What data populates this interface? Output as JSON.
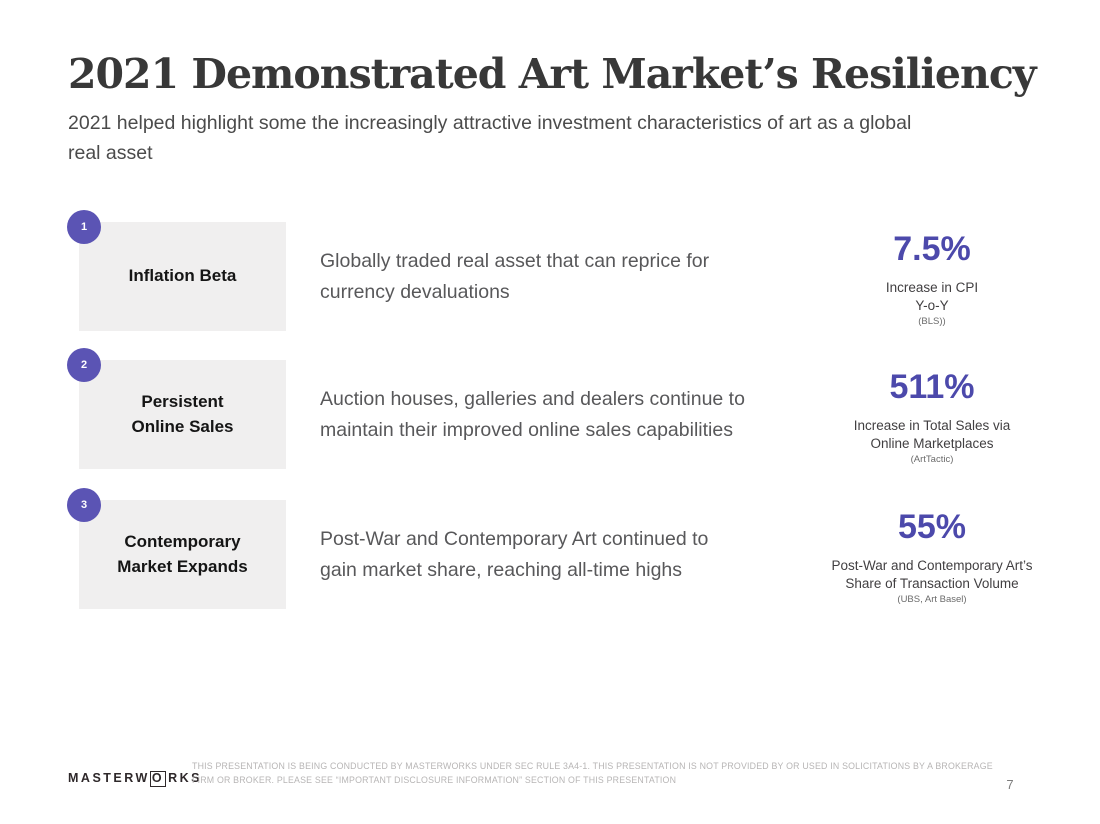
{
  "slide": {
    "title": "2021 Demonstrated Art Market’s Resiliency",
    "subtitle": "2021 helped highlight some the increasingly attractive investment characteristics of art as a global\nreal asset"
  },
  "rows": [
    {
      "number": "1",
      "label": "Inflation Beta",
      "description": "Globally traded real asset that can reprice for\ncurrency devaluations",
      "stat_value": "7.5%",
      "stat_label": "Increase in CPI\nY-o-Y",
      "stat_source": "(BLS))"
    },
    {
      "number": "2",
      "label": "Persistent\nOnline Sales",
      "description": "Auction houses, galleries and dealers continue to\nmaintain their improved online sales capabilities",
      "stat_value": "511%",
      "stat_label": "Increase in Total Sales via\nOnline Marketplaces",
      "stat_source": "(ArtTactic)"
    },
    {
      "number": "3",
      "label": "Contemporary\nMarket Expands",
      "description": "Post-War and Contemporary Art continued to\ngain market share, reaching all-time highs",
      "stat_value": "55%",
      "stat_label": "Post-War and Contemporary Art’s\nShare of Transaction Volume",
      "stat_source": "(UBS, Art Basel)"
    }
  ],
  "footer": {
    "logo_prefix": "MASTERW",
    "logo_o": "O",
    "logo_suffix": "RKS",
    "disclaimer": "THIS PRESENTATION IS BEING CONDUCTED BY MASTERWORKS UNDER SEC RULE 3A4-1. THIS PRESENTATION IS NOT PROVIDED BY OR USED IN SOLICITATIONS BY A BROKERAGE\nFIRM OR BROKER. PLEASE SEE “IMPORTANT DISCLOSURE INFORMATION” SECTION OF THIS PRESENTATION",
    "page_number": "7"
  },
  "colors": {
    "accent_purple": "#4c49ab",
    "badge_purple": "#5b54b4",
    "card_gray": "#f0efef",
    "title_color": "#383838",
    "body_gray": "#58585a",
    "disclaimer_gray": "#b7b5b5"
  }
}
